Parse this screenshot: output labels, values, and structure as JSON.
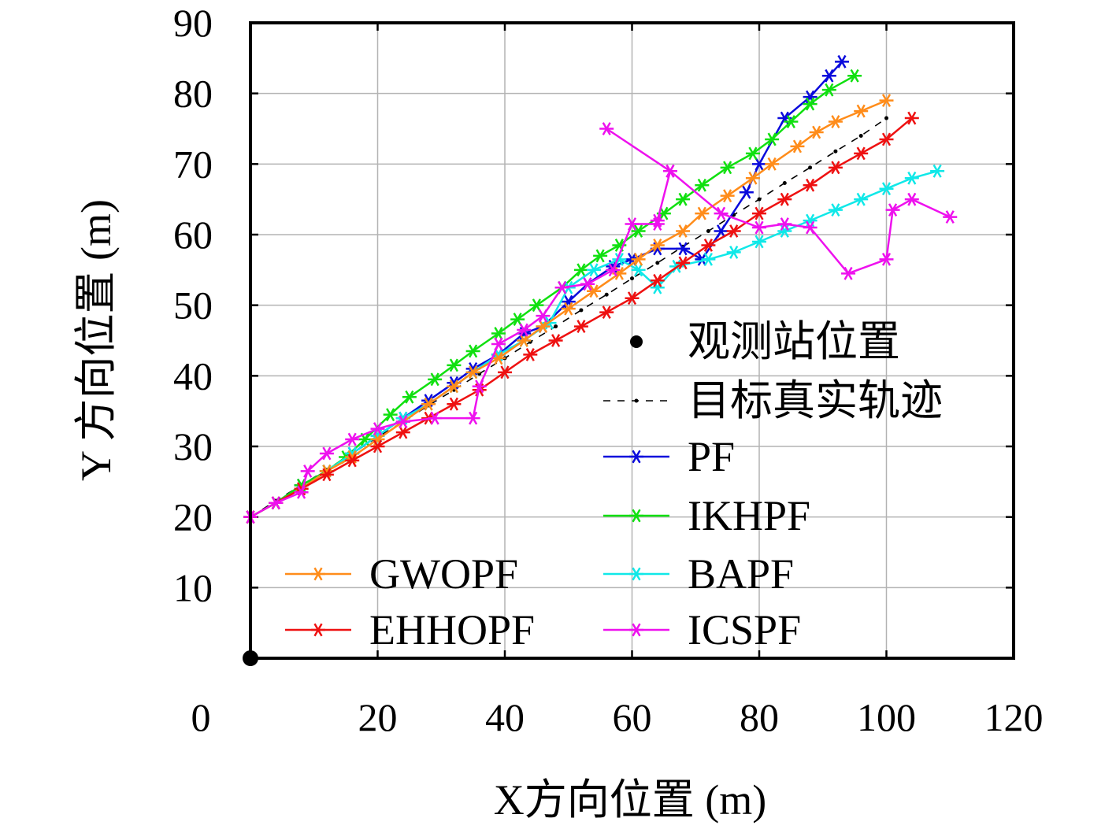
{
  "chart_data": {
    "type": "line",
    "xlabel": "X方向位置 (m)",
    "ylabel": "Y 方向位置 (m)",
    "xlim": [
      0,
      120
    ],
    "ylim": [
      0,
      90
    ],
    "x_ticks": [
      0,
      20,
      40,
      60,
      80,
      100,
      120
    ],
    "y_ticks": [
      10,
      20,
      30,
      40,
      50,
      60,
      70,
      80,
      90
    ],
    "grid": true,
    "legend_placement": "inside, lower-right and lower-left",
    "observer": {
      "name": "观测站位置",
      "x": 0,
      "y": 0,
      "color": "#000000"
    },
    "series": [
      {
        "name": "目标真实轨迹",
        "color": "#000000",
        "style": "dashed",
        "x": [
          0,
          4,
          8,
          12,
          16,
          20,
          24,
          28,
          32,
          36,
          40,
          44,
          48,
          52,
          56,
          60,
          64,
          68,
          72,
          76,
          80,
          84,
          88,
          92,
          96,
          100
        ],
        "y": [
          20,
          22.3,
          24.5,
          26.7,
          29,
          31.3,
          33.5,
          35.8,
          38,
          40.3,
          42.5,
          44.8,
          47,
          49.3,
          51.5,
          53.8,
          56,
          58.3,
          60.5,
          62.8,
          65,
          67.3,
          69.5,
          71.8,
          74,
          76.5
        ]
      },
      {
        "name": "PF",
        "color": "#0a0adc",
        "style": "solid",
        "x": [
          0,
          4,
          8,
          12,
          16,
          20,
          24,
          28,
          32,
          35,
          39,
          43,
          46,
          50,
          53,
          57,
          60,
          64,
          68,
          71,
          74,
          78,
          80,
          84,
          88,
          91,
          93
        ],
        "y": [
          20,
          22,
          24.5,
          26.5,
          29,
          31.5,
          34,
          36.5,
          39,
          41,
          43,
          46,
          47,
          50.5,
          53,
          55.5,
          56.5,
          58,
          58,
          56.5,
          60.5,
          66,
          70,
          76.5,
          79.5,
          82.5,
          84.5
        ]
      },
      {
        "name": "IKHPF",
        "color": "#10e010",
        "style": "solid",
        "x": [
          0,
          4,
          8,
          12,
          15,
          18,
          22,
          25,
          29,
          32,
          35,
          39,
          42,
          45,
          49,
          52,
          55,
          58,
          61,
          65,
          68,
          71,
          75,
          79,
          82,
          85,
          88,
          91,
          95
        ],
        "y": [
          20,
          22,
          24.5,
          26.5,
          28.5,
          31,
          34.5,
          37,
          39.5,
          41.5,
          43.5,
          46,
          48,
          50,
          52.5,
          55,
          57,
          58.5,
          60.5,
          63,
          65,
          67,
          69.5,
          71.5,
          73.5,
          76,
          78.5,
          80.5,
          82.5
        ]
      },
      {
        "name": "BAPF",
        "color": "#10e8e8",
        "style": "solid",
        "x": [
          0,
          4,
          8,
          12,
          16,
          20,
          24,
          28,
          32,
          35,
          39,
          43,
          47,
          50,
          54,
          58,
          61,
          64,
          67,
          72,
          76,
          80,
          84,
          88,
          92,
          96,
          100,
          104,
          108
        ],
        "y": [
          20,
          22,
          24,
          26.5,
          29,
          31.5,
          34,
          36,
          38.5,
          40.5,
          43,
          45,
          47.5,
          52.5,
          55,
          56.5,
          55,
          52.5,
          55.5,
          56.5,
          57.5,
          59,
          60.5,
          62,
          63.5,
          65,
          66.5,
          68,
          69
        ]
      },
      {
        "name": "GWOPF",
        "color": "#ff8c1a",
        "style": "solid",
        "x": [
          0,
          4,
          8,
          12,
          16,
          20,
          24,
          28,
          32,
          35,
          39,
          43,
          46,
          50,
          54,
          58,
          61,
          64,
          68,
          71,
          75,
          79,
          82,
          86,
          89,
          92,
          96,
          100
        ],
        "y": [
          20,
          22,
          24,
          26.5,
          28.5,
          31,
          33.5,
          36,
          38.5,
          40.5,
          42.5,
          45,
          47,
          49.5,
          52,
          54.5,
          56.5,
          58.5,
          60.5,
          63,
          65.5,
          68,
          70,
          72.5,
          74.5,
          76,
          77.5,
          79
        ]
      },
      {
        "name": "EHHOPF",
        "color": "#ee1111",
        "style": "solid",
        "x": [
          0,
          4,
          8,
          12,
          16,
          20,
          24,
          28,
          32,
          36,
          40,
          44,
          48,
          52,
          56,
          60,
          64,
          68,
          72,
          76,
          80,
          84,
          88,
          92,
          96,
          100,
          104
        ],
        "y": [
          20,
          22,
          24,
          26,
          28,
          30,
          32,
          34,
          36,
          38,
          40.5,
          43,
          45,
          47,
          49,
          51,
          53.5,
          56,
          58.5,
          60.5,
          63,
          65,
          67,
          69.5,
          71.5,
          73.5,
          76.5
        ]
      },
      {
        "name": "ICSPF",
        "color": "#ee11ee",
        "style": "solid",
        "x": [
          0,
          4,
          8,
          9,
          12,
          16,
          20,
          24,
          29,
          35,
          36,
          39,
          43,
          46,
          49,
          53,
          57,
          60,
          64,
          64,
          66,
          56,
          66,
          74,
          80,
          84,
          88,
          94,
          100,
          101,
          104,
          110
        ],
        "y": [
          20,
          22,
          23.5,
          26.5,
          29,
          31,
          32.5,
          33.5,
          34,
          34,
          38.5,
          44.5,
          46.5,
          48.5,
          52.5,
          53,
          55,
          61.5,
          61.5,
          62,
          69,
          75,
          69,
          63,
          61,
          61.5,
          61,
          54.5,
          56.5,
          63.5,
          65,
          62.5
        ]
      }
    ]
  }
}
